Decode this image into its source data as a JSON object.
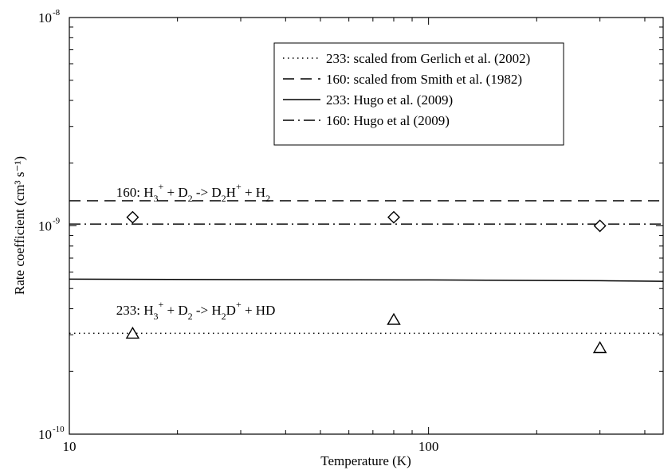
{
  "chart_data": {
    "type": "line",
    "title": "",
    "xlabel": "Temperature (K)",
    "ylabel": "Rate coefficient (cm³ s⁻¹)",
    "xscale": "log",
    "yscale": "log",
    "xlim": [
      10,
      450
    ],
    "ylim": [
      1e-10,
      1e-08
    ],
    "grid": false,
    "legend_position": "top-right",
    "x_ticks": [
      {
        "value": 10,
        "label": "10"
      },
      {
        "value": 100,
        "label": "100"
      }
    ],
    "y_ticks": [
      {
        "value": 1e-10,
        "base": "10",
        "exp": "-10"
      },
      {
        "value": 1e-09,
        "base": "10",
        "exp": "-9"
      },
      {
        "value": 1e-08,
        "base": "10",
        "exp": "-8"
      }
    ],
    "series": [
      {
        "name": "233: scaled from Gerlich et al. (2002)",
        "style": "dotted",
        "x": [
          10,
          450
        ],
        "y": [
          3.05e-10,
          3.05e-10
        ]
      },
      {
        "name": "160: scaled from Smith et al. (1982)",
        "style": "dashed",
        "x": [
          10,
          450
        ],
        "y": [
          1.32e-09,
          1.32e-09
        ]
      },
      {
        "name": "233: Hugo et al. (2009)",
        "style": "solid",
        "x": [
          10,
          30,
          100,
          300,
          450
        ],
        "y": [
          5.55e-10,
          5.52e-10,
          5.5e-10,
          5.45e-10,
          5.42e-10
        ]
      },
      {
        "name": "160: Hugo et al (2009)",
        "style": "dashdot",
        "x": [
          10,
          450
        ],
        "y": [
          1.02e-09,
          1.02e-09
        ]
      }
    ],
    "markers": [
      {
        "shape": "diamond",
        "x": [
          15,
          80,
          300
        ],
        "y": [
          1.1e-09,
          1.1e-09,
          1e-09
        ]
      },
      {
        "shape": "triangle",
        "x": [
          15,
          80,
          300
        ],
        "y": [
          3.05e-10,
          3.55e-10,
          2.6e-10
        ]
      }
    ],
    "annotations": [
      {
        "id": "reaction-160",
        "x": 13.5,
        "y": 1.38e-09,
        "parts": [
          [
            "160: H",
            "n"
          ],
          [
            "3",
            "sub"
          ],
          [
            "+",
            "sup"
          ],
          [
            " + D",
            "n"
          ],
          [
            "2",
            "sub"
          ],
          [
            " -> D",
            "n"
          ],
          [
            "2",
            "sub"
          ],
          [
            "H",
            "n"
          ],
          [
            "+",
            "sup"
          ],
          [
            " + H",
            "n"
          ],
          [
            "2",
            "sub"
          ]
        ]
      },
      {
        "id": "reaction-233",
        "x": 13.5,
        "y": 3.75e-10,
        "parts": [
          [
            "233: H",
            "n"
          ],
          [
            "3",
            "sub"
          ],
          [
            "+",
            "sup"
          ],
          [
            " + D",
            "n"
          ],
          [
            "2",
            "sub"
          ],
          [
            " -> H",
            "n"
          ],
          [
            "2",
            "sub"
          ],
          [
            "D",
            "n"
          ],
          [
            "+",
            "sup"
          ],
          [
            " + HD",
            "n"
          ]
        ]
      }
    ]
  }
}
